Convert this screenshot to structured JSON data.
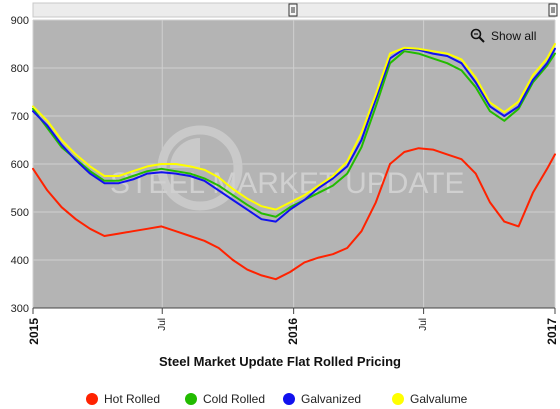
{
  "toolbar": {
    "show_all_label": "Show all"
  },
  "watermark": {
    "text": "STEEL MARKET UPDATE"
  },
  "colors": {
    "hot_rolled": "#ff2200",
    "cold_rolled": "#22bb00",
    "galvanized": "#1111ee",
    "galvalume": "#ffff00"
  },
  "chart_data": {
    "type": "line",
    "title": "Steel Market Update Flat Rolled Pricing",
    "ylim": [
      300,
      900
    ],
    "yticks": [
      300,
      400,
      500,
      600,
      700,
      800,
      900
    ],
    "grid": true,
    "legend": "bottom",
    "x_range": [
      "2015-01-01",
      "2017-01-01"
    ],
    "xticks": [
      {
        "date": "2015-01-01",
        "label": "2015",
        "major": true
      },
      {
        "date": "2015-07-01",
        "label": "Jul",
        "major": false
      },
      {
        "date": "2016-01-01",
        "label": "2016",
        "major": true
      },
      {
        "date": "2016-07-01",
        "label": "Jul",
        "major": false
      },
      {
        "date": "2017-01-01",
        "label": "2017",
        "major": true
      }
    ],
    "x": [
      "2015-01-01",
      "2015-01-21",
      "2015-02-10",
      "2015-03-02",
      "2015-03-22",
      "2015-04-11",
      "2015-05-01",
      "2015-05-21",
      "2015-06-10",
      "2015-06-30",
      "2015-07-20",
      "2015-08-09",
      "2015-08-29",
      "2015-09-18",
      "2015-10-08",
      "2015-10-28",
      "2015-11-17",
      "2015-12-07",
      "2015-12-27",
      "2016-01-16",
      "2016-02-05",
      "2016-02-25",
      "2016-03-16",
      "2016-04-05",
      "2016-04-25",
      "2016-05-15",
      "2016-06-04",
      "2016-06-24",
      "2016-07-14",
      "2016-08-03",
      "2016-08-23",
      "2016-09-12",
      "2016-10-02",
      "2016-10-22",
      "2016-11-11",
      "2016-12-01",
      "2016-12-21",
      "2017-01-01"
    ],
    "series": [
      {
        "name": "Hot Rolled",
        "color_key": "hot_rolled",
        "values": [
          590,
          545,
          510,
          485,
          465,
          450,
          455,
          460,
          465,
          470,
          460,
          450,
          440,
          425,
          400,
          380,
          368,
          360,
          375,
          395,
          405,
          412,
          425,
          460,
          520,
          600,
          625,
          633,
          630,
          620,
          610,
          580,
          520,
          480,
          470,
          540,
          590,
          620
        ]
      },
      {
        "name": "Cold Rolled",
        "color_key": "cold_rolled",
        "values": [
          715,
          675,
          635,
          610,
          585,
          565,
          565,
          575,
          585,
          590,
          585,
          580,
          570,
          555,
          535,
          515,
          497,
          490,
          510,
          525,
          540,
          555,
          580,
          635,
          720,
          810,
          835,
          830,
          820,
          810,
          795,
          760,
          710,
          690,
          715,
          770,
          805,
          830
        ]
      },
      {
        "name": "Galvanized",
        "color_key": "galvanized",
        "values": [
          710,
          680,
          640,
          608,
          580,
          560,
          560,
          568,
          580,
          583,
          580,
          575,
          565,
          545,
          525,
          505,
          485,
          480,
          505,
          525,
          550,
          570,
          595,
          650,
          735,
          820,
          840,
          838,
          830,
          825,
          810,
          770,
          720,
          700,
          720,
          775,
          810,
          840
        ]
      },
      {
        "name": "Galvalume",
        "color_key": "galvalume",
        "values": [
          720,
          690,
          650,
          620,
          595,
          575,
          575,
          585,
          595,
          600,
          600,
          595,
          588,
          572,
          548,
          528,
          512,
          505,
          520,
          535,
          555,
          575,
          605,
          665,
          745,
          830,
          842,
          840,
          835,
          830,
          818,
          780,
          728,
          708,
          730,
          785,
          820,
          850
        ]
      }
    ]
  }
}
